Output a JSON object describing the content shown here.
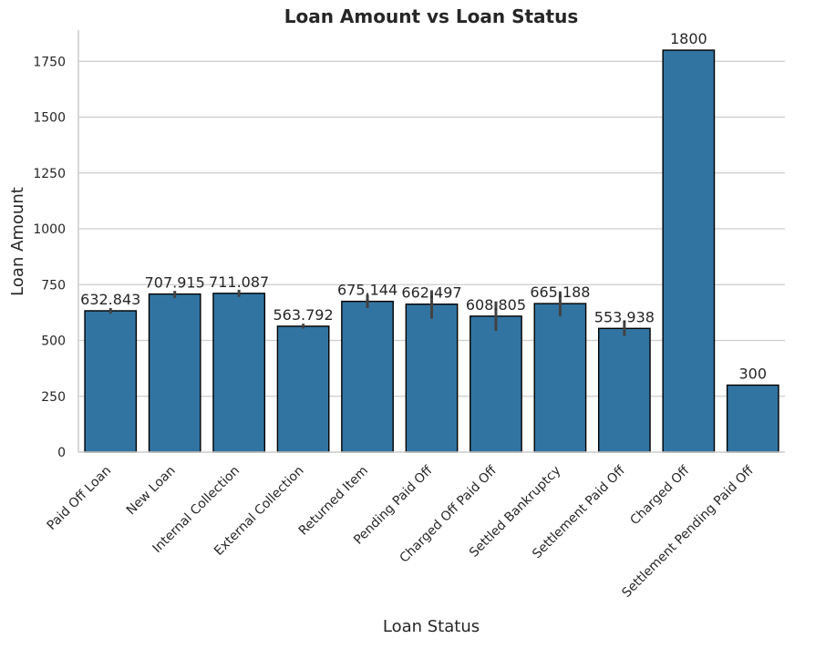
{
  "chart_data": {
    "type": "bar",
    "title": "Loan Amount vs Loan Status",
    "xlabel": "Loan Status",
    "ylabel": "Loan Amount",
    "ylim": [
      0,
      1890
    ],
    "yticks": [
      0,
      250,
      500,
      750,
      1000,
      1250,
      1500,
      1750
    ],
    "grid": "horizontal",
    "bar_color": "#3274a1",
    "bar_edge_color": "#000000",
    "errorbar_color": "#424242",
    "categories": [
      "Paid Off Loan",
      "New Loan",
      "Internal Collection",
      "External Collection",
      "Returned Item",
      "Pending Paid Off",
      "Charged Off Paid Off",
      "Settled Bankruptcy",
      "Settlement Paid Off",
      "Charged Off",
      "Settlement Pending Paid Off"
    ],
    "values": [
      632.843,
      707.915,
      711.087,
      563.792,
      675.144,
      662.497,
      608.805,
      665.188,
      553.938,
      1800,
      300
    ],
    "data_labels": [
      "632.843",
      "707.915",
      "711.087",
      "563.792",
      "675.144",
      "662.497",
      "608.805",
      "665.188",
      "553.938",
      "1800",
      "300"
    ],
    "error_low": [
      620,
      690,
      695,
      553,
      645,
      598,
      543,
      608,
      520,
      1800,
      300
    ],
    "error_high": [
      645,
      722,
      727,
      575,
      705,
      725,
      675,
      720,
      590,
      1800,
      300
    ]
  }
}
